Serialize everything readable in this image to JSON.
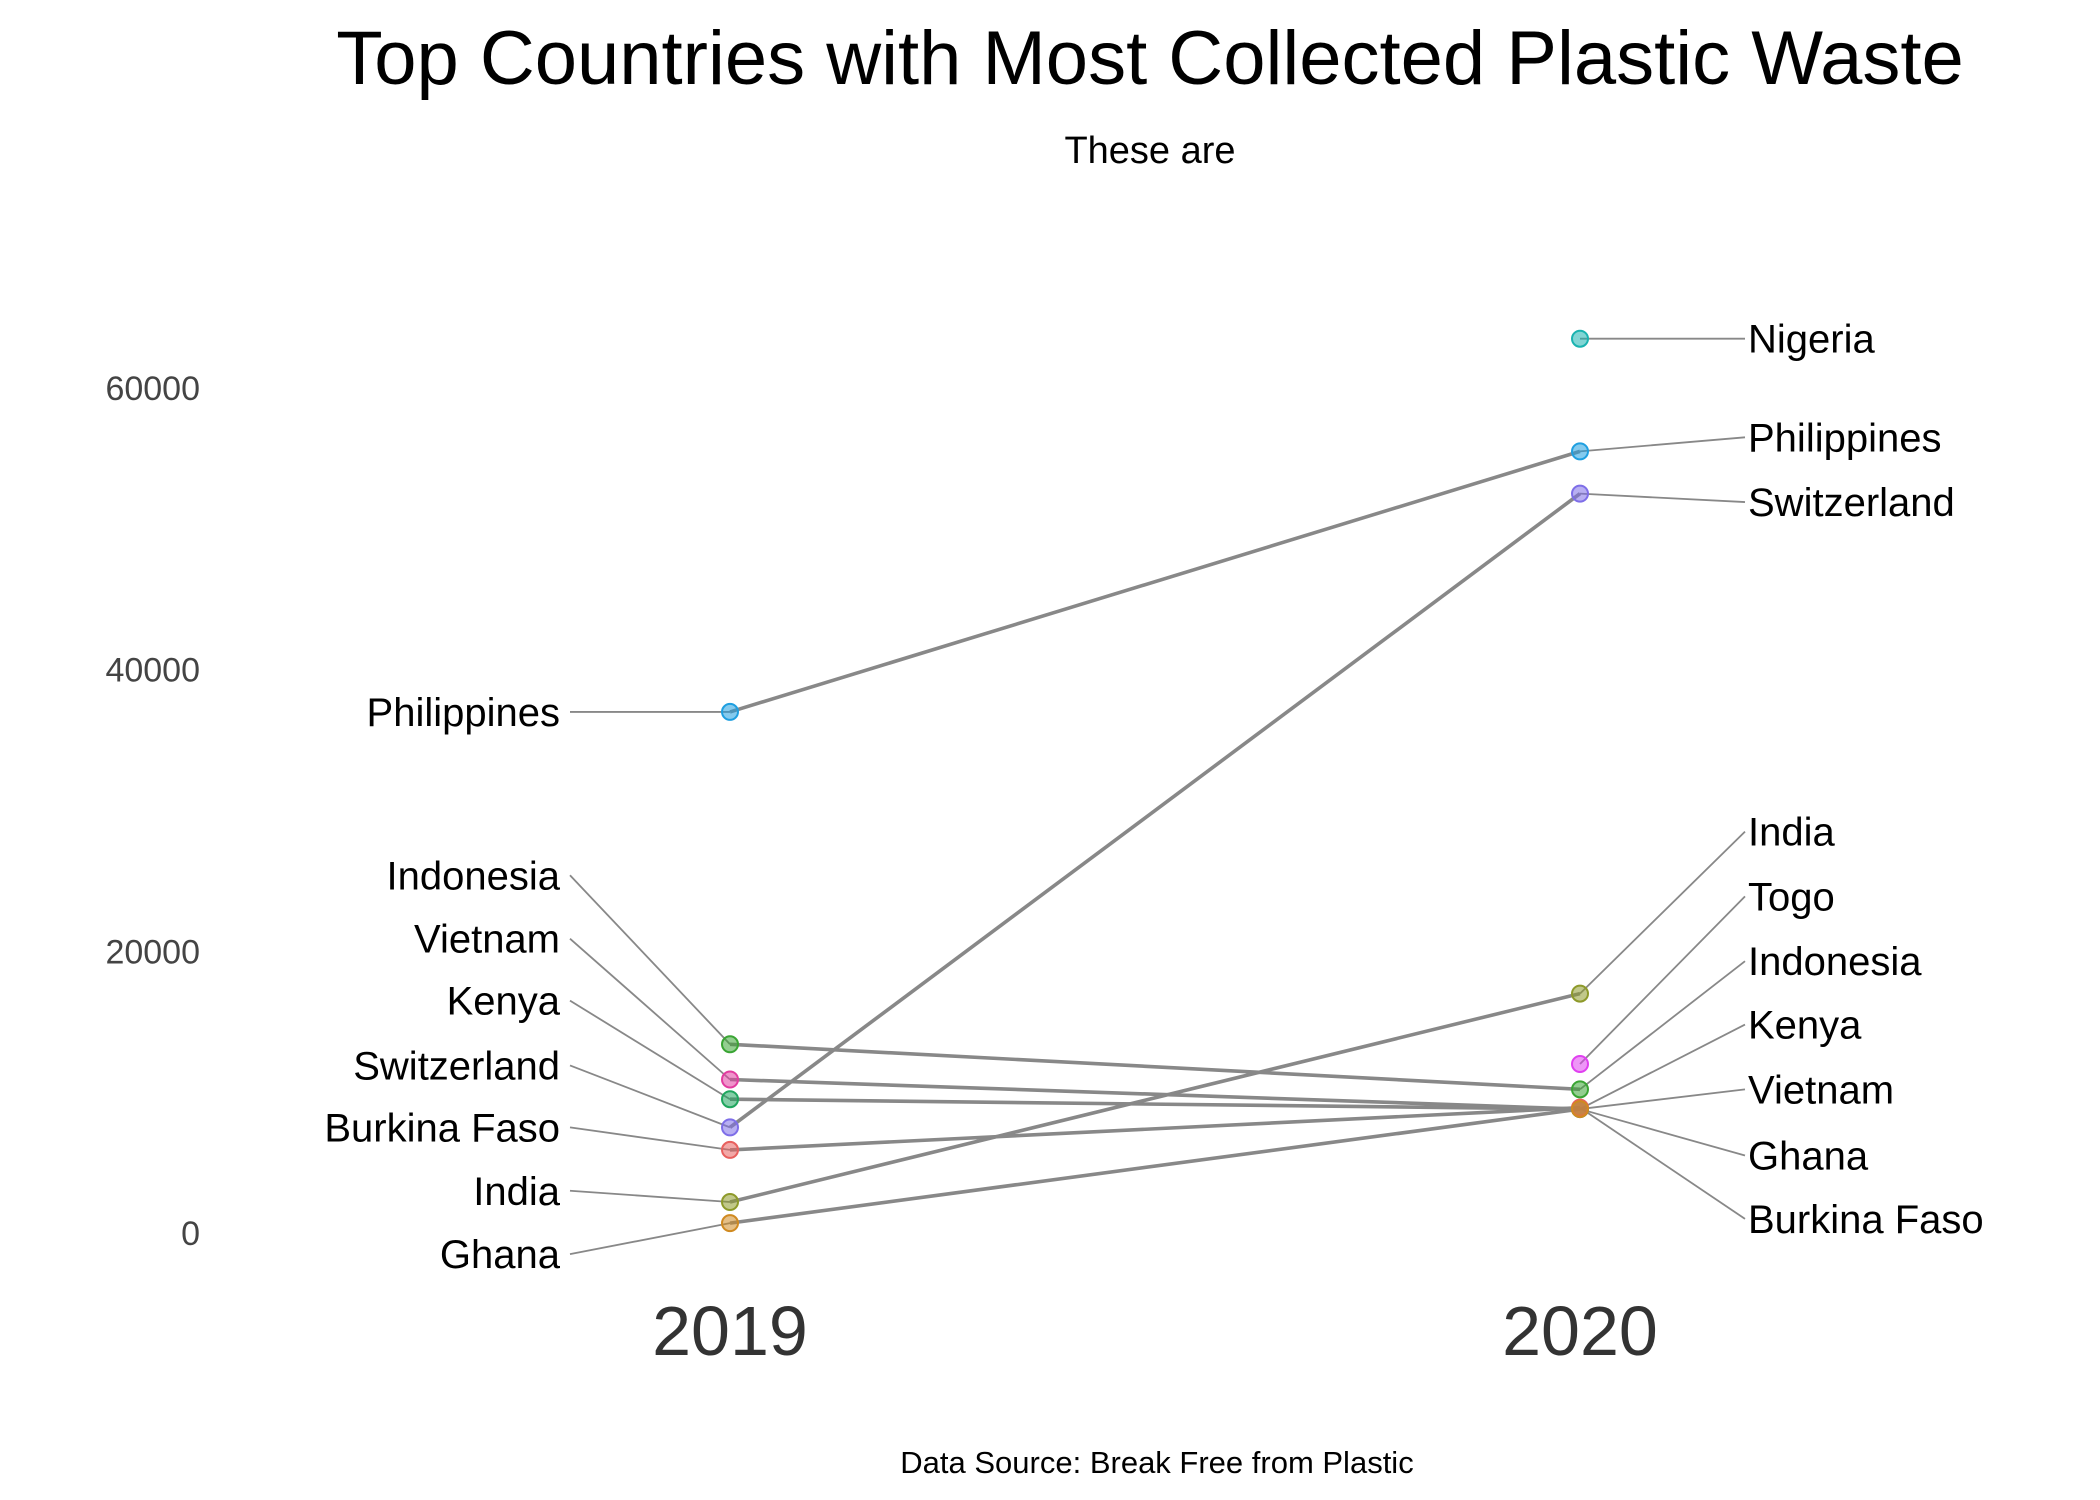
{
  "chart_data": {
    "type": "slope",
    "title": "Top Countries with Most Collected Plastic Waste",
    "subtitle": "These are",
    "caption": "Data Source: Break Free from Plastic",
    "categories": [
      "2019",
      "2020"
    ],
    "ylim": [
      -2000,
      70000
    ],
    "yticks": [
      0,
      20000,
      40000,
      60000
    ],
    "grid": false,
    "series": [
      {
        "name": "Philippines",
        "color": "#1f9fe0",
        "values": [
          37000,
          55500
        ],
        "label_2019": 37000,
        "label_2020": 56500
      },
      {
        "name": "Indonesia",
        "color": "#3aa534",
        "values": [
          13400,
          10200
        ],
        "label_2019": 25400,
        "label_2020": 19300
      },
      {
        "name": "Vietnam",
        "color": "#e23ca0",
        "values": [
          10900,
          8800
        ],
        "label_2019": 20900,
        "label_2020": 10200
      },
      {
        "name": "Kenya",
        "color": "#1fa65e",
        "values": [
          9500,
          8800
        ],
        "label_2019": 16500,
        "label_2020": 14800
      },
      {
        "name": "Switzerland",
        "color": "#7e6ee8",
        "values": [
          7500,
          52500
        ],
        "label_2019": 11900,
        "label_2020": 51900
      },
      {
        "name": "Burkina Faso",
        "color": "#e8605e",
        "values": [
          5900,
          8900
        ],
        "label_2019": 7500,
        "label_2020": 1000
      },
      {
        "name": "India",
        "color": "#8e9a2a",
        "values": [
          2200,
          17000
        ],
        "label_2019": 3000,
        "label_2020": 28500
      },
      {
        "name": "Ghana",
        "color": "#d08a20",
        "values": [
          700,
          8800
        ],
        "label_2019": -1500,
        "label_2020": 5500
      },
      {
        "name": "Nigeria",
        "color": "#1ab3b0",
        "values": [
          null,
          63500
        ],
        "label_2019": null,
        "label_2020": 63500
      },
      {
        "name": "Togo",
        "color": "#e040f0",
        "values": [
          null,
          12000
        ],
        "label_2019": null,
        "label_2020": 23900
      }
    ]
  }
}
